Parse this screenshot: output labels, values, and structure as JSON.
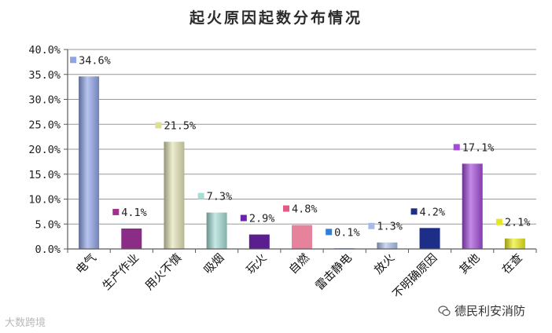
{
  "chart_data": {
    "type": "bar",
    "title": "起火原因起数分布情况",
    "categories": [
      "电气",
      "生产作业",
      "用火不慎",
      "吸烟",
      "玩火",
      "自燃",
      "雷击静电",
      "放火",
      "不明确原因",
      "其他",
      "在查"
    ],
    "values": [
      34.6,
      4.1,
      21.5,
      7.3,
      2.9,
      4.8,
      0.1,
      1.3,
      4.2,
      17.1,
      2.1
    ],
    "value_labels": [
      "34.6%",
      "4.1%",
      "21.5%",
      "7.3%",
      "2.9%",
      "4.8%",
      "0.1%",
      "1.3%",
      "4.2%",
      "17.1%",
      "2.1%"
    ],
    "yticks": [
      "0.0%",
      "5.0%",
      "10.0%",
      "15.0%",
      "20.0%",
      "25.0%",
      "30.0%",
      "35.0%",
      "40.0%"
    ],
    "ylim": [
      0,
      40
    ],
    "grid": true,
    "legend": "none",
    "colors": [
      "#8fa4e6",
      "#8b2c87",
      "#e4e4b6",
      "#a6ddd6",
      "#5b1e8e",
      "#e6829b",
      "#3d73cc",
      "#aec3ea",
      "#1c2e87",
      "#a24bd9",
      "#eeee1c"
    ],
    "bar_styles": [
      "gradient",
      "flat",
      "gradient",
      "gradient",
      "flat",
      "flat",
      "flat",
      "gradient",
      "flat",
      "gradient",
      "gradient"
    ],
    "marker_colors": [
      "#8fa4e6",
      "#a2308f",
      "#dede9a",
      "#a6ddd6",
      "#6b24a6",
      "#e05c85",
      "#2f7fd9",
      "#a3bde6",
      "#1c2e87",
      "#a24bd9",
      "#e6e61c"
    ]
  },
  "watermarks": {
    "left": "大数跨境",
    "right": "德民利安消防"
  }
}
